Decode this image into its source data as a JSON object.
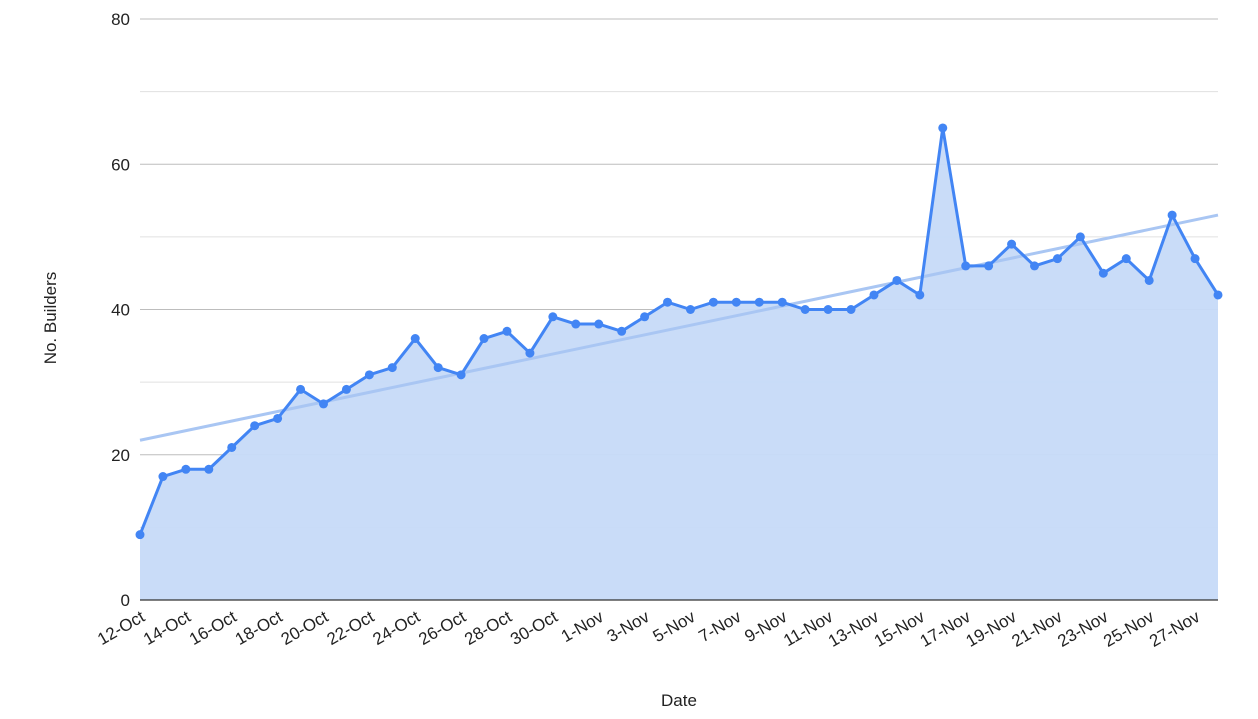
{
  "chart_data": {
    "type": "area",
    "title": "",
    "xlabel": "Date",
    "ylabel": "No. Builders",
    "ylim": [
      0,
      80
    ],
    "yticks": [
      0,
      20,
      40,
      60,
      80
    ],
    "grid": true,
    "legend": "none",
    "categories": [
      "12-Oct",
      "13-Oct",
      "14-Oct",
      "15-Oct",
      "16-Oct",
      "17-Oct",
      "18-Oct",
      "19-Oct",
      "20-Oct",
      "21-Oct",
      "22-Oct",
      "23-Oct",
      "24-Oct",
      "25-Oct",
      "26-Oct",
      "27-Oct",
      "28-Oct",
      "29-Oct",
      "30-Oct",
      "31-Oct",
      "1-Nov",
      "2-Nov",
      "3-Nov",
      "4-Nov",
      "5-Nov",
      "6-Nov",
      "7-Nov",
      "8-Nov",
      "9-Nov",
      "10-Nov",
      "11-Nov",
      "12-Nov",
      "13-Nov",
      "14-Nov",
      "15-Nov",
      "16-Nov",
      "17-Nov",
      "18-Nov",
      "19-Nov",
      "20-Nov",
      "21-Nov",
      "22-Nov",
      "23-Nov",
      "24-Nov",
      "25-Nov",
      "26-Nov",
      "27-Nov",
      "28-Nov"
    ],
    "xtick_labels": [
      "12-Oct",
      "14-Oct",
      "16-Oct",
      "18-Oct",
      "20-Oct",
      "22-Oct",
      "24-Oct",
      "26-Oct",
      "28-Oct",
      "30-Oct",
      "1-Nov",
      "3-Nov",
      "5-Nov",
      "7-Nov",
      "9-Nov",
      "11-Nov",
      "13-Nov",
      "15-Nov",
      "17-Nov",
      "19-Nov",
      "21-Nov",
      "23-Nov",
      "25-Nov",
      "27-Nov"
    ],
    "series": [
      {
        "values": [
          9,
          17,
          18,
          18,
          21,
          24,
          25,
          29,
          27,
          29,
          31,
          32,
          36,
          32,
          31,
          36,
          37,
          34,
          39,
          38,
          38,
          37,
          39,
          41,
          40,
          41,
          41,
          41,
          41,
          40,
          40,
          40,
          42,
          44,
          42,
          65,
          46,
          46,
          49,
          46,
          47,
          50,
          45,
          47,
          44,
          53,
          47,
          42
        ]
      }
    ],
    "trendline": {
      "type": "linear",
      "start": 22,
      "end": 53
    },
    "colors": {
      "line": "#4285f4",
      "fill": "#c6daf8",
      "trend": "#a9c6f3",
      "grid_major": "#bdbdbd",
      "grid_minor": "#e0e0e0"
    }
  }
}
